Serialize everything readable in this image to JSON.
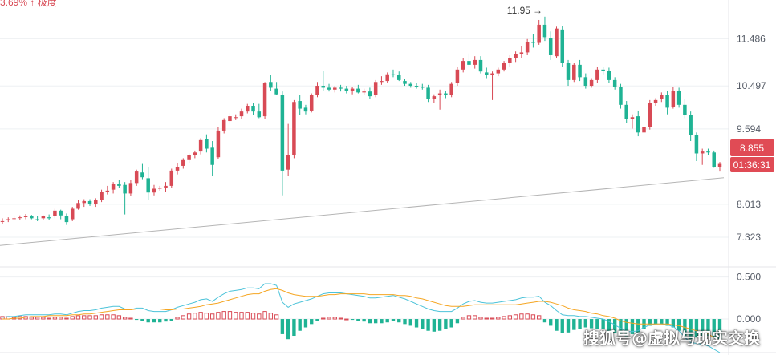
{
  "header": {
    "partial_text": "3.69% ↑ 极度"
  },
  "watermark": "搜狐号@虚拟与现实交换",
  "colors": {
    "up": "#d84a55",
    "down": "#1fb394",
    "macd_line": "#4cc3d9",
    "signal_line": "#f5a623",
    "trend_line": "#b5b5b5",
    "grid": "#eef0f3",
    "price_tag": "#e04b55"
  },
  "chart_data": {
    "type": "candlestick",
    "main_axis": {
      "ticks": [
        11.486,
        10.497,
        9.594,
        8.013,
        7.323
      ],
      "ylim": [
        6.7,
        12.3
      ]
    },
    "macd_axis": {
      "ticks": [
        0.5,
        0.0
      ],
      "ylim": [
        -0.4,
        0.62
      ]
    },
    "annotations": {
      "peak_label": "11.95",
      "peak_arrow": "→",
      "last_price": "8.855",
      "countdown": "01:36:31"
    },
    "trendline": {
      "start": 7.15,
      "end": 8.57
    },
    "candles": [
      [
        7.66,
        7.72,
        7.6,
        7.66
      ],
      [
        7.7,
        7.74,
        7.64,
        7.7
      ],
      [
        7.72,
        7.76,
        7.68,
        7.72
      ],
      [
        7.74,
        7.78,
        7.69,
        7.74
      ],
      [
        7.76,
        7.81,
        7.7,
        7.76
      ],
      [
        7.76,
        7.79,
        7.7,
        7.72
      ],
      [
        7.7,
        7.76,
        7.66,
        7.68
      ],
      [
        7.72,
        7.78,
        7.68,
        7.76
      ],
      [
        7.74,
        7.8,
        7.68,
        7.72
      ],
      [
        7.76,
        7.92,
        7.72,
        7.88
      ],
      [
        7.88,
        7.9,
        7.7,
        7.78
      ],
      [
        7.76,
        7.82,
        7.58,
        7.64
      ],
      [
        7.7,
        7.96,
        7.66,
        7.92
      ],
      [
        7.92,
        8.1,
        7.9,
        8.04
      ],
      [
        8.04,
        8.12,
        7.96,
        8.08
      ],
      [
        8.08,
        8.12,
        7.98,
        8.02
      ],
      [
        8.02,
        8.14,
        7.96,
        8.1
      ],
      [
        8.1,
        8.32,
        8.06,
        8.28
      ],
      [
        8.28,
        8.4,
        8.22,
        8.3
      ],
      [
        8.32,
        8.48,
        8.24,
        8.44
      ],
      [
        8.44,
        8.52,
        8.36,
        8.4
      ],
      [
        8.42,
        8.48,
        7.8,
        8.24
      ],
      [
        8.24,
        8.52,
        8.18,
        8.46
      ],
      [
        8.46,
        8.74,
        8.4,
        8.7
      ],
      [
        8.68,
        8.86,
        8.54,
        8.58
      ],
      [
        8.56,
        8.8,
        8.1,
        8.26
      ],
      [
        8.26,
        8.42,
        8.2,
        8.34
      ],
      [
        8.34,
        8.4,
        8.3,
        8.36
      ],
      [
        8.36,
        8.48,
        8.28,
        8.4
      ],
      [
        8.4,
        8.76,
        8.36,
        8.72
      ],
      [
        8.72,
        8.88,
        8.64,
        8.8
      ],
      [
        8.82,
        8.98,
        8.76,
        8.94
      ],
      [
        8.94,
        9.08,
        8.88,
        9.04
      ],
      [
        9.04,
        9.14,
        8.98,
        9.1
      ],
      [
        9.12,
        9.4,
        9.06,
        9.36
      ],
      [
        9.38,
        9.48,
        9.1,
        9.18
      ],
      [
        9.2,
        9.34,
        8.6,
        8.84
      ],
      [
        9.0,
        9.64,
        8.96,
        9.56
      ],
      [
        9.56,
        9.82,
        9.5,
        9.78
      ],
      [
        9.76,
        9.92,
        9.7,
        9.86
      ],
      [
        9.84,
        9.9,
        9.78,
        9.84
      ],
      [
        9.86,
        10.02,
        9.8,
        9.96
      ],
      [
        9.96,
        10.12,
        9.92,
        10.08
      ],
      [
        10.08,
        10.14,
        9.88,
        9.96
      ],
      [
        9.96,
        10.12,
        9.82,
        9.84
      ],
      [
        9.86,
        10.58,
        9.8,
        10.56
      ],
      [
        10.58,
        10.72,
        10.4,
        10.46
      ],
      [
        10.44,
        10.58,
        10.3,
        10.32
      ],
      [
        10.3,
        10.38,
        8.2,
        8.72
      ],
      [
        8.74,
        9.7,
        8.6,
        9.04
      ],
      [
        9.04,
        10.2,
        8.98,
        10.16
      ],
      [
        10.18,
        10.3,
        9.88,
        10.02
      ],
      [
        10.04,
        10.1,
        9.9,
        9.96
      ],
      [
        9.98,
        10.34,
        9.94,
        10.3
      ],
      [
        10.3,
        10.58,
        10.26,
        10.5
      ],
      [
        10.5,
        10.82,
        10.4,
        10.46
      ],
      [
        10.46,
        10.54,
        10.38,
        10.42
      ],
      [
        10.42,
        10.5,
        10.36,
        10.46
      ],
      [
        10.46,
        10.52,
        10.38,
        10.44
      ],
      [
        10.44,
        10.5,
        10.34,
        10.4
      ],
      [
        10.4,
        10.48,
        10.32,
        10.44
      ],
      [
        10.44,
        10.52,
        10.34,
        10.36
      ],
      [
        10.36,
        10.44,
        10.3,
        10.38
      ],
      [
        10.38,
        10.46,
        10.22,
        10.28
      ],
      [
        10.3,
        10.62,
        10.26,
        10.58
      ],
      [
        10.58,
        10.7,
        10.52,
        10.6
      ],
      [
        10.6,
        10.78,
        10.56,
        10.74
      ],
      [
        10.74,
        10.84,
        10.68,
        10.72
      ],
      [
        10.72,
        10.8,
        10.6,
        10.62
      ],
      [
        10.6,
        10.64,
        10.5,
        10.54
      ],
      [
        10.54,
        10.58,
        10.46,
        10.5
      ],
      [
        10.5,
        10.56,
        10.44,
        10.48
      ],
      [
        10.48,
        10.54,
        10.42,
        10.46
      ],
      [
        10.46,
        10.52,
        10.16,
        10.22
      ],
      [
        10.22,
        10.32,
        10.14,
        10.28
      ],
      [
        10.3,
        10.42,
        10.0,
        10.34
      ],
      [
        10.34,
        10.4,
        10.24,
        10.3
      ],
      [
        10.3,
        10.58,
        10.26,
        10.54
      ],
      [
        10.56,
        10.9,
        10.5,
        10.84
      ],
      [
        10.84,
        11.08,
        10.78,
        11.02
      ],
      [
        11.02,
        11.18,
        10.9,
        10.94
      ],
      [
        10.94,
        11.12,
        10.86,
        11.04
      ],
      [
        11.04,
        11.12,
        10.76,
        10.8
      ],
      [
        10.78,
        10.88,
        10.66,
        10.72
      ],
      [
        10.72,
        10.8,
        10.2,
        10.76
      ],
      [
        10.76,
        10.88,
        10.7,
        10.84
      ],
      [
        10.84,
        11.02,
        10.8,
        10.98
      ],
      [
        10.98,
        11.14,
        10.9,
        11.08
      ],
      [
        11.08,
        11.22,
        11.0,
        11.16
      ],
      [
        11.16,
        11.34,
        11.08,
        11.2
      ],
      [
        11.2,
        11.48,
        11.14,
        11.42
      ],
      [
        11.42,
        11.58,
        11.3,
        11.4
      ],
      [
        11.4,
        11.88,
        11.36,
        11.78
      ],
      [
        11.78,
        11.95,
        11.44,
        11.52
      ],
      [
        11.5,
        11.64,
        11.04,
        11.14
      ],
      [
        11.12,
        11.74,
        11.08,
        11.7
      ],
      [
        11.68,
        11.76,
        10.9,
        10.98
      ],
      [
        10.98,
        11.04,
        10.5,
        10.62
      ],
      [
        10.62,
        10.98,
        10.58,
        10.94
      ],
      [
        10.94,
        11.04,
        10.6,
        10.68
      ],
      [
        10.68,
        10.76,
        10.44,
        10.5
      ],
      [
        10.5,
        10.66,
        10.46,
        10.62
      ],
      [
        10.62,
        10.9,
        10.56,
        10.84
      ],
      [
        10.84,
        10.9,
        10.74,
        10.82
      ],
      [
        10.82,
        10.88,
        10.56,
        10.62
      ],
      [
        10.62,
        10.68,
        10.42,
        10.48
      ],
      [
        10.48,
        10.54,
        10.02,
        10.1
      ],
      [
        10.1,
        10.18,
        9.72,
        9.8
      ],
      [
        9.8,
        9.9,
        9.6,
        9.84
      ],
      [
        9.86,
        9.98,
        9.44,
        9.52
      ],
      [
        9.52,
        9.7,
        9.48,
        9.64
      ],
      [
        9.64,
        10.2,
        9.58,
        10.14
      ],
      [
        10.14,
        10.24,
        10.08,
        10.2
      ],
      [
        10.22,
        10.36,
        10.16,
        10.3
      ],
      [
        10.3,
        10.4,
        9.9,
        10.04
      ],
      [
        10.06,
        10.48,
        10.02,
        10.4
      ],
      [
        10.4,
        10.46,
        10.04,
        10.1
      ],
      [
        10.1,
        10.22,
        9.82,
        9.88
      ],
      [
        9.88,
        9.96,
        9.34,
        9.46
      ],
      [
        9.46,
        9.52,
        8.92,
        9.08
      ],
      [
        9.08,
        9.18,
        8.84,
        9.12
      ],
      [
        9.12,
        9.18,
        9.04,
        9.1
      ],
      [
        9.1,
        9.14,
        8.78,
        8.8
      ],
      [
        8.8,
        8.9,
        8.7,
        8.86
      ]
    ],
    "macd_hist": [
      0.03,
      0.03,
      0.02,
      0.03,
      0.03,
      0.02,
      0.02,
      0.02,
      0.01,
      0.02,
      0.02,
      0.01,
      0.03,
      0.04,
      0.04,
      0.04,
      0.04,
      0.05,
      0.05,
      0.05,
      0.04,
      0.02,
      0.01,
      -0.01,
      -0.02,
      -0.04,
      -0.04,
      -0.04,
      -0.03,
      -0.02,
      0.02,
      0.04,
      0.06,
      0.07,
      0.08,
      0.07,
      0.06,
      0.08,
      0.09,
      0.09,
      0.08,
      0.08,
      0.08,
      0.07,
      0.06,
      0.09,
      0.07,
      0.05,
      -0.18,
      -0.24,
      -0.2,
      -0.14,
      -0.1,
      -0.06,
      -0.02,
      0.01,
      0.02,
      0.02,
      0.01,
      0.0,
      -0.01,
      -0.02,
      -0.03,
      -0.05,
      -0.05,
      -0.05,
      -0.04,
      -0.02,
      -0.04,
      -0.06,
      -0.08,
      -0.1,
      -0.12,
      -0.14,
      -0.15,
      -0.14,
      -0.12,
      -0.1,
      -0.05,
      0.02,
      0.04,
      0.04,
      0.02,
      0.01,
      0.01,
      0.02,
      0.03,
      0.04,
      0.05,
      0.06,
      0.06,
      0.05,
      0.04,
      -0.04,
      -0.08,
      -0.14,
      -0.17,
      -0.16,
      -0.13,
      -0.12,
      -0.1,
      -0.11,
      -0.12,
      -0.12,
      -0.14,
      -0.17,
      -0.19,
      -0.21,
      -0.18,
      -0.16,
      -0.12,
      -0.08,
      -0.06,
      -0.06,
      -0.08,
      -0.1,
      -0.14,
      -0.2,
      -0.24,
      -0.22,
      -0.2,
      -0.2,
      -0.22,
      -0.24
    ],
    "macd_line": [
      0.02,
      0.03,
      0.03,
      0.04,
      0.05,
      0.05,
      0.05,
      0.05,
      0.05,
      0.06,
      0.06,
      0.05,
      0.07,
      0.09,
      0.1,
      0.1,
      0.11,
      0.13,
      0.14,
      0.15,
      0.15,
      0.12,
      0.11,
      0.13,
      0.13,
      0.1,
      0.09,
      0.09,
      0.09,
      0.11,
      0.14,
      0.16,
      0.18,
      0.2,
      0.23,
      0.24,
      0.21,
      0.26,
      0.3,
      0.33,
      0.34,
      0.35,
      0.37,
      0.37,
      0.36,
      0.42,
      0.42,
      0.4,
      0.2,
      0.14,
      0.18,
      0.2,
      0.22,
      0.24,
      0.27,
      0.3,
      0.31,
      0.31,
      0.31,
      0.3,
      0.29,
      0.28,
      0.27,
      0.25,
      0.25,
      0.26,
      0.27,
      0.28,
      0.26,
      0.24,
      0.21,
      0.18,
      0.15,
      0.12,
      0.1,
      0.09,
      0.09,
      0.09,
      0.13,
      0.18,
      0.21,
      0.22,
      0.2,
      0.19,
      0.19,
      0.2,
      0.21,
      0.22,
      0.23,
      0.25,
      0.26,
      0.26,
      0.27,
      0.2,
      0.16,
      0.1,
      0.05,
      0.04,
      0.04,
      0.03,
      0.03,
      0.02,
      0.01,
      0.0,
      -0.03,
      -0.07,
      -0.11,
      -0.15,
      -0.15,
      -0.14,
      -0.1,
      -0.07,
      -0.06,
      -0.06,
      -0.07,
      -0.09,
      -0.14,
      -0.22,
      -0.28,
      -0.29,
      -0.3,
      -0.32,
      -0.36,
      -0.4
    ],
    "signal_line": [
      0.0,
      0.0,
      0.01,
      0.01,
      0.02,
      0.03,
      0.03,
      0.03,
      0.04,
      0.04,
      0.04,
      0.04,
      0.05,
      0.05,
      0.06,
      0.06,
      0.07,
      0.08,
      0.09,
      0.1,
      0.11,
      0.11,
      0.11,
      0.12,
      0.12,
      0.12,
      0.12,
      0.12,
      0.11,
      0.11,
      0.12,
      0.12,
      0.13,
      0.14,
      0.15,
      0.17,
      0.18,
      0.19,
      0.21,
      0.23,
      0.25,
      0.27,
      0.29,
      0.3,
      0.3,
      0.33,
      0.35,
      0.36,
      0.34,
      0.31,
      0.29,
      0.28,
      0.27,
      0.27,
      0.27,
      0.28,
      0.29,
      0.29,
      0.3,
      0.3,
      0.3,
      0.3,
      0.3,
      0.29,
      0.29,
      0.29,
      0.29,
      0.29,
      0.28,
      0.28,
      0.27,
      0.25,
      0.24,
      0.22,
      0.2,
      0.18,
      0.16,
      0.15,
      0.15,
      0.15,
      0.16,
      0.17,
      0.17,
      0.17,
      0.17,
      0.17,
      0.17,
      0.17,
      0.17,
      0.18,
      0.19,
      0.2,
      0.21,
      0.21,
      0.2,
      0.18,
      0.16,
      0.13,
      0.11,
      0.1,
      0.09,
      0.07,
      0.06,
      0.04,
      0.03,
      0.01,
      -0.02,
      -0.04,
      -0.05,
      -0.06,
      -0.06,
      -0.06,
      -0.06,
      -0.06,
      -0.06,
      -0.07,
      -0.08,
      -0.1,
      -0.12,
      -0.14,
      -0.16,
      -0.18,
      -0.22,
      -0.26
    ]
  }
}
